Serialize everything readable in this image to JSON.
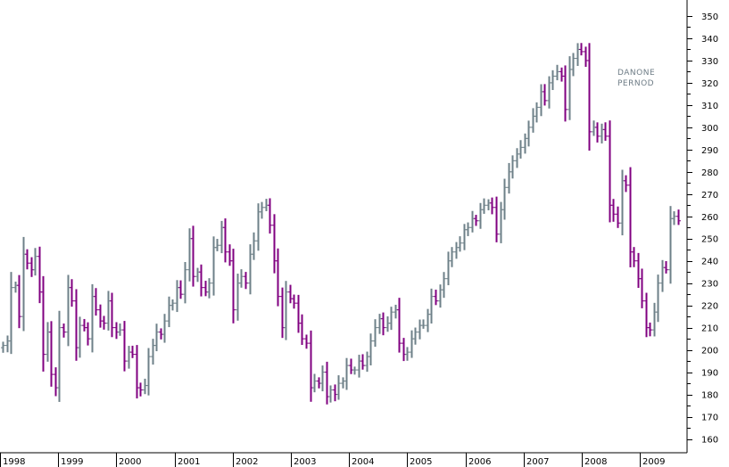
{
  "chart_data": {
    "type": "ohlc",
    "legend": [
      "DANONE",
      "PERNOD"
    ],
    "colors": {
      "up": "#6e8088",
      "down": "#800080",
      "axis": "#000000"
    },
    "x_ticks": [
      "1998",
      "1999",
      "2000",
      "2001",
      "2002",
      "2003",
      "2004",
      "2005",
      "2006",
      "2007",
      "2008",
      "2009"
    ],
    "y_ticks": [
      "160",
      "170",
      "180",
      "190",
      "200",
      "210",
      "220",
      "230",
      "240",
      "250",
      "260",
      "270",
      "280",
      "290",
      "300",
      "310",
      "320",
      "330",
      "340",
      "350"
    ],
    "ylim": [
      155,
      356
    ],
    "grid": false,
    "closes": [
      202,
      204,
      228,
      229,
      215,
      243,
      239,
      236,
      242,
      226,
      198,
      208,
      189,
      183,
      210,
      208,
      228,
      222,
      201,
      211,
      210,
      205,
      224,
      218,
      213,
      212,
      222,
      210,
      208,
      209,
      195,
      199,
      198,
      183,
      182,
      184,
      197,
      202,
      208,
      207,
      213,
      220,
      221,
      228,
      225,
      236,
      250,
      233,
      235,
      228,
      226,
      230,
      246,
      247,
      255,
      244,
      240,
      218,
      230,
      233,
      230,
      243,
      249,
      262,
      264,
      265,
      256,
      240,
      224,
      210,
      226,
      223,
      221,
      212,
      205,
      203,
      183,
      186,
      185,
      190,
      179,
      182,
      180,
      185,
      186,
      193,
      191,
      191,
      195,
      193,
      197,
      204,
      210,
      214,
      210,
      212,
      217,
      218,
      203,
      198,
      199,
      205,
      208,
      211,
      211,
      216,
      224,
      222,
      227,
      232,
      240,
      244,
      246,
      248,
      254,
      255,
      259,
      258,
      263,
      265,
      266,
      264,
      252,
      263,
      273,
      280,
      285,
      288,
      291,
      295,
      300,
      305,
      309,
      316,
      312,
      320,
      323,
      325,
      323,
      308,
      326,
      331,
      335,
      334,
      330,
      298,
      300,
      296,
      299,
      296,
      265,
      261,
      257,
      276,
      274,
      244,
      240,
      232,
      222,
      210,
      209,
      217,
      230,
      237,
      236,
      259,
      260,
      258
    ]
  }
}
